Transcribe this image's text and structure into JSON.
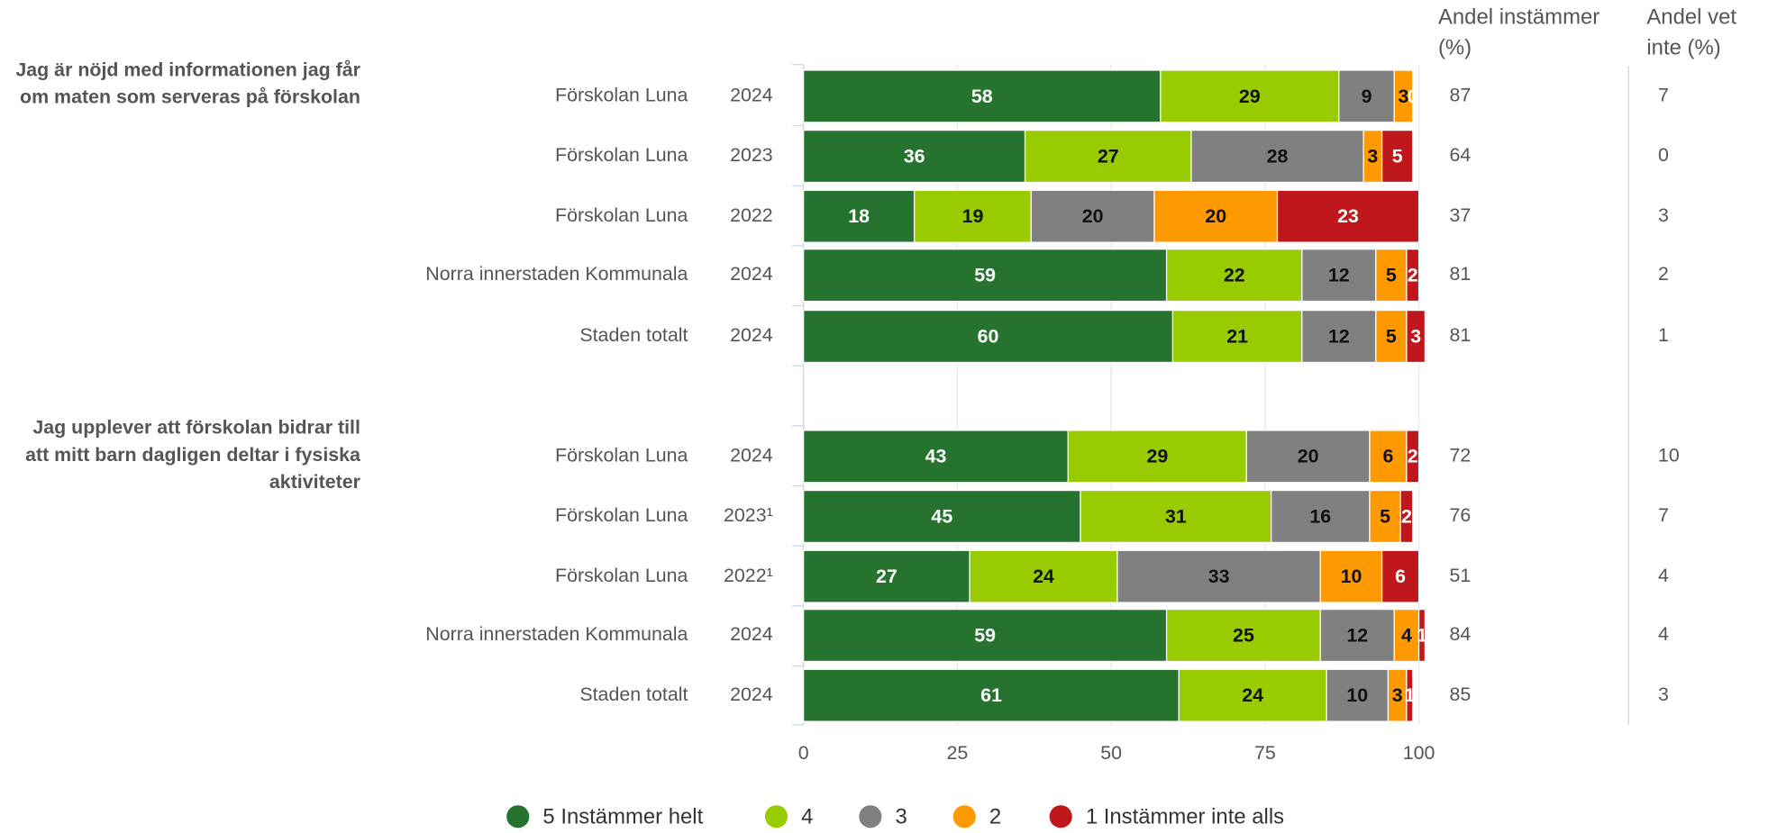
{
  "headers": [
    "Andel instämmer (%)",
    "Andel vet inte (%)"
  ],
  "chart_data": [
    {
      "type": "bar",
      "orientation": "horizontal",
      "stacked": true,
      "title": "Jag är nöjd med informationen jag får om maten som serveras på förskolan",
      "categories": [
        "Förskolan Luna",
        "Förskolan Luna",
        "Förskolan Luna",
        "Norra innerstaden Kommunala",
        "Staden totalt"
      ],
      "years": [
        "2024",
        "2023",
        "2022",
        "2024",
        "2024"
      ],
      "series": [
        {
          "name": "5 Instämmer helt",
          "color": "#267330",
          "values": [
            58,
            36,
            18,
            59,
            60
          ]
        },
        {
          "name": "4",
          "color": "#99cc00",
          "values": [
            29,
            27,
            19,
            22,
            21
          ]
        },
        {
          "name": "3",
          "color": "#808080",
          "values": [
            9,
            28,
            20,
            12,
            12
          ]
        },
        {
          "name": "2",
          "color": "#ff9900",
          "values": [
            3,
            3,
            20,
            5,
            5
          ]
        },
        {
          "name": "1 Instämmer inte alls",
          "color": "#c0171c",
          "values": [
            0,
            5,
            23,
            2,
            3
          ]
        }
      ],
      "agree": [
        87,
        64,
        37,
        81,
        81
      ],
      "dont_know": [
        7,
        0,
        3,
        2,
        1
      ],
      "xlim": [
        0,
        100
      ]
    },
    {
      "type": "bar",
      "orientation": "horizontal",
      "stacked": true,
      "title": "Jag upplever att förskolan bidrar till att mitt barn dagligen deltar i fysiska aktiviteter",
      "categories": [
        "Förskolan Luna",
        "Förskolan Luna",
        "Förskolan Luna",
        "Norra innerstaden Kommunala",
        "Staden totalt"
      ],
      "years": [
        "2024",
        "2023¹",
        "2022¹",
        "2024",
        "2024"
      ],
      "series": [
        {
          "name": "5 Instämmer helt",
          "color": "#267330",
          "values": [
            43,
            45,
            27,
            59,
            61
          ]
        },
        {
          "name": "4",
          "color": "#99cc00",
          "values": [
            29,
            31,
            24,
            25,
            24
          ]
        },
        {
          "name": "3",
          "color": "#808080",
          "values": [
            20,
            16,
            33,
            12,
            10
          ]
        },
        {
          "name": "2",
          "color": "#ff9900",
          "values": [
            6,
            5,
            10,
            4,
            3
          ]
        },
        {
          "name": "1 Instämmer inte alls",
          "color": "#c0171c",
          "values": [
            2,
            2,
            6,
            1,
            1
          ]
        }
      ],
      "agree": [
        72,
        76,
        51,
        84,
        85
      ],
      "dont_know": [
        10,
        7,
        4,
        4,
        3
      ],
      "xlim": [
        0,
        100
      ],
      "xticks": [
        0,
        25,
        50,
        75,
        100
      ],
      "grid": true
    }
  ]
}
